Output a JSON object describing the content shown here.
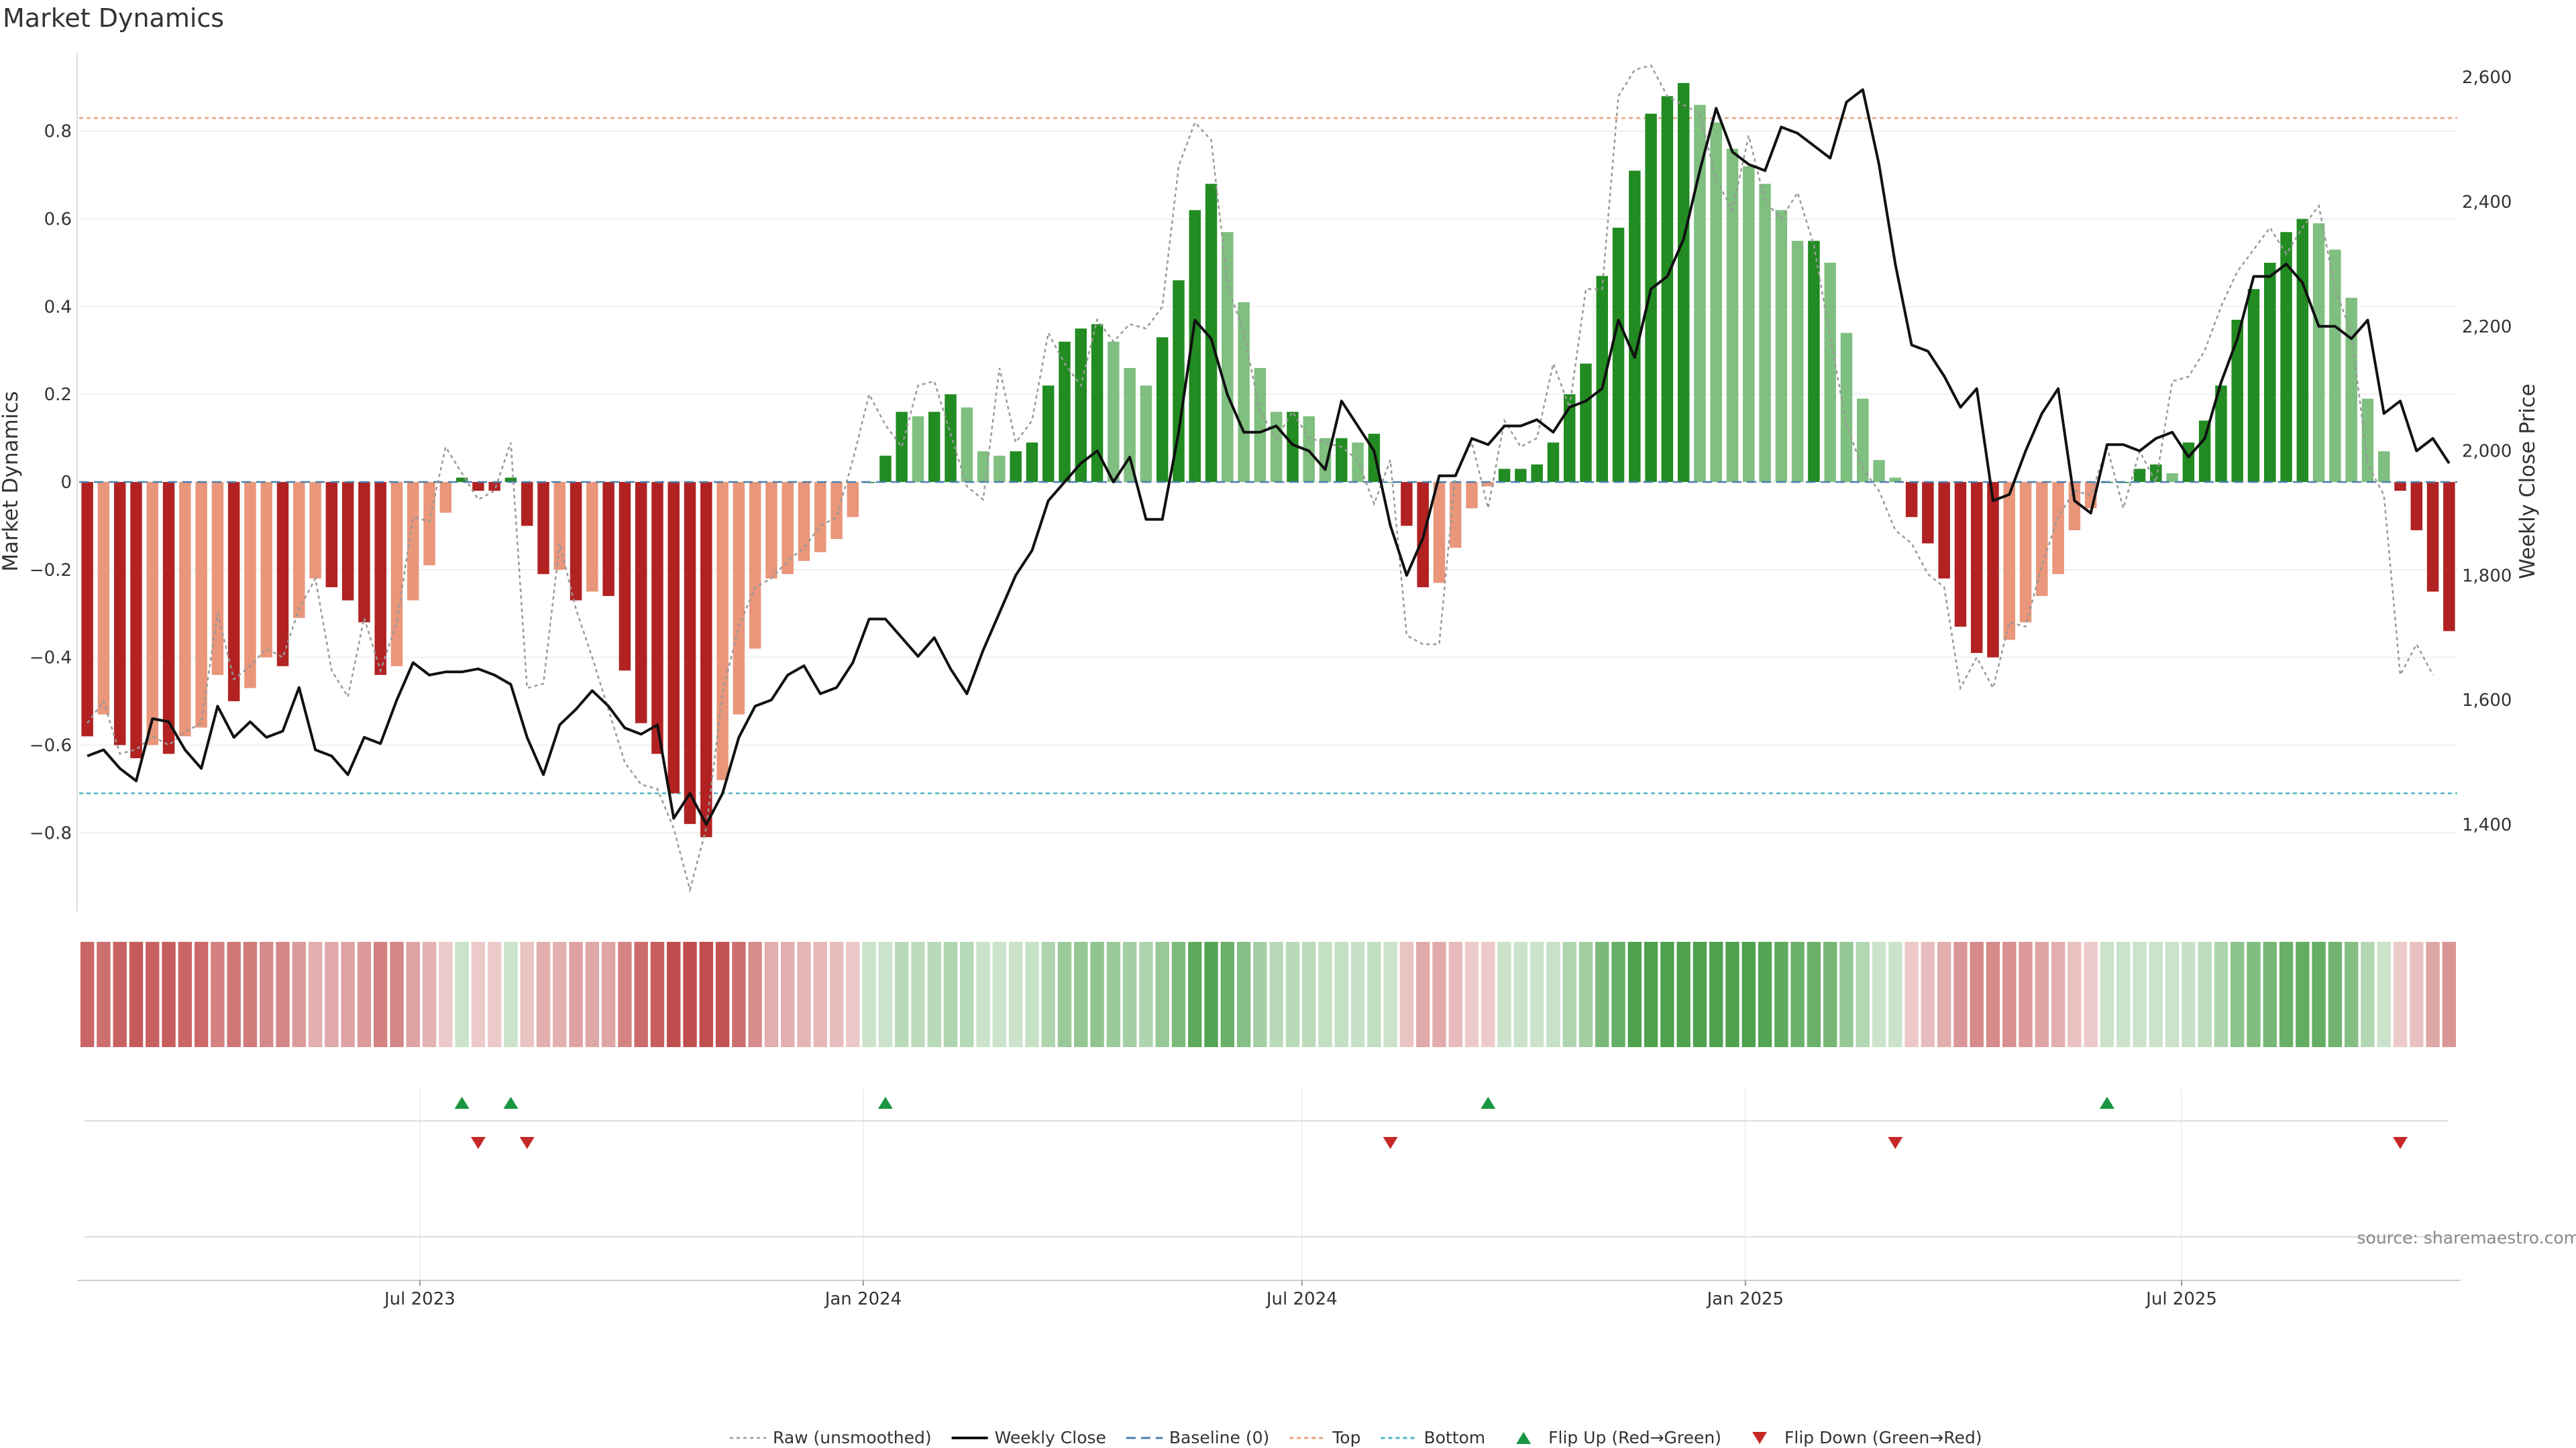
{
  "chart_data": {
    "type": "bar",
    "title": "Market Dynamics",
    "ylabel_left": "Market Dynamics",
    "ylabel_right": "Weekly Close Price",
    "ylim_left": [
      -0.98,
      0.98
    ],
    "ylim_right": [
      1260,
      2640
    ],
    "yticks_left": [
      -0.8,
      -0.6,
      -0.4,
      -0.2,
      0,
      0.2,
      0.4,
      0.6,
      0.8
    ],
    "yticks_left_labels": [
      "−0.8",
      "−0.6",
      "−0.4",
      "−0.2",
      "0",
      "0.2",
      "0.4",
      "0.6",
      "0.8"
    ],
    "yticks_right": [
      1400,
      1600,
      1800,
      2000,
      2200,
      2400,
      2600
    ],
    "yticks_right_labels": [
      "1,400",
      "1,600",
      "1,800",
      "2,000",
      "2,200",
      "2,400",
      "2,600"
    ],
    "date_range": [
      "2023-02-13",
      "2025-10-20"
    ],
    "x_ticks": [
      {
        "date": "2023-07-01",
        "label": "Jul 2023"
      },
      {
        "date": "2024-01-01",
        "label": "Jan 2024"
      },
      {
        "date": "2024-07-01",
        "label": "Jul 2024"
      },
      {
        "date": "2025-01-01",
        "label": "Jan 2025"
      },
      {
        "date": "2025-07-01",
        "label": "Jul 2025"
      }
    ],
    "series_dynamics_smoothed": [
      -0.58,
      -0.53,
      -0.6,
      -0.63,
      -0.6,
      -0.62,
      -0.58,
      -0.56,
      -0.44,
      -0.5,
      -0.47,
      -0.4,
      -0.42,
      -0.31,
      -0.22,
      -0.24,
      -0.27,
      -0.32,
      -0.44,
      -0.42,
      -0.27,
      -0.19,
      -0.07,
      0.01,
      -0.02,
      -0.02,
      0.01,
      -0.1,
      -0.21,
      -0.2,
      -0.27,
      -0.25,
      -0.26,
      -0.43,
      -0.55,
      -0.62,
      -0.71,
      -0.78,
      -0.81,
      -0.68,
      -0.53,
      -0.38,
      -0.22,
      -0.21,
      -0.18,
      -0.16,
      -0.13,
      -0.08,
      0.0,
      0.06,
      0.16,
      0.15,
      0.16,
      0.2,
      0.17,
      0.07,
      0.06,
      0.07,
      0.09,
      0.22,
      0.32,
      0.35,
      0.36,
      0.32,
      0.26,
      0.22,
      0.33,
      0.46,
      0.62,
      0.68,
      0.57,
      0.41,
      0.26,
      0.16,
      0.16,
      0.15,
      0.1,
      0.1,
      0.09,
      0.11,
      0.0,
      -0.1,
      -0.24,
      -0.23,
      -0.15,
      -0.06,
      -0.01,
      0.03,
      0.03,
      0.04,
      0.09,
      0.2,
      0.27,
      0.47,
      0.58,
      0.71,
      0.84,
      0.88,
      0.91,
      0.86,
      0.82,
      0.76,
      0.72,
      0.68,
      0.62,
      0.55,
      0.55,
      0.5,
      0.34,
      0.19,
      0.05,
      0.01,
      -0.08,
      -0.14,
      -0.22,
      -0.33,
      -0.39,
      -0.4,
      -0.36,
      -0.32,
      -0.26,
      -0.21,
      -0.11,
      -0.06,
      0.0,
      0.0,
      0.03,
      0.04,
      0.02,
      0.09,
      0.14,
      0.22,
      0.37,
      0.44,
      0.5,
      0.57,
      0.6,
      0.59,
      0.53,
      0.42,
      0.19,
      0.07,
      -0.02,
      -0.11,
      -0.25,
      -0.34
    ],
    "series_dynamics_raw": [
      -0.55,
      -0.5,
      -0.62,
      -0.61,
      -0.58,
      -0.6,
      -0.57,
      -0.55,
      -0.3,
      -0.45,
      -0.42,
      -0.38,
      -0.4,
      -0.29,
      -0.22,
      -0.43,
      -0.49,
      -0.31,
      -0.43,
      -0.32,
      -0.08,
      -0.09,
      0.08,
      0.02,
      -0.04,
      -0.02,
      0.09,
      -0.47,
      -0.46,
      -0.14,
      -0.29,
      -0.4,
      -0.52,
      -0.64,
      -0.69,
      -0.7,
      -0.79,
      -0.93,
      -0.79,
      -0.48,
      -0.33,
      -0.24,
      -0.22,
      -0.18,
      -0.15,
      -0.1,
      -0.08,
      0.05,
      0.2,
      0.13,
      0.08,
      0.22,
      0.23,
      0.11,
      -0.01,
      -0.04,
      0.26,
      0.09,
      0.14,
      0.34,
      0.27,
      0.22,
      0.37,
      0.32,
      0.36,
      0.35,
      0.4,
      0.72,
      0.82,
      0.78,
      0.45,
      0.34,
      0.16,
      0.1,
      0.16,
      0.1,
      0.09,
      0.08,
      0.05,
      -0.05,
      0.05,
      -0.35,
      -0.37,
      -0.37,
      0.02,
      0.09,
      -0.06,
      0.14,
      0.08,
      0.1,
      0.27,
      0.17,
      0.44,
      0.44,
      0.88,
      0.94,
      0.95,
      0.88,
      0.86,
      0.84,
      0.69,
      0.62,
      0.79,
      0.64,
      0.6,
      0.66,
      0.54,
      0.33,
      0.13,
      0.03,
      -0.02,
      -0.11,
      -0.14,
      -0.21,
      -0.24,
      -0.47,
      -0.4,
      -0.47,
      -0.32,
      -0.33,
      -0.19,
      -0.08,
      -0.02,
      -0.03,
      0.08,
      -0.06,
      0.07,
      0.0,
      0.23,
      0.24,
      0.3,
      0.4,
      0.48,
      0.53,
      0.58,
      0.52,
      0.58,
      0.63,
      0.44,
      0.34,
      0.04,
      -0.03,
      -0.44,
      -0.37,
      -0.44
    ],
    "series_weekly_close": [
      1510,
      1520,
      1490,
      1470,
      1570,
      1565,
      1520,
      1490,
      1590,
      1540,
      1565,
      1540,
      1550,
      1620,
      1520,
      1510,
      1480,
      1540,
      1530,
      1600,
      1660,
      1640,
      1645,
      1645,
      1650,
      1640,
      1625,
      1540,
      1480,
      1560,
      1585,
      1615,
      1590,
      1555,
      1545,
      1560,
      1410,
      1450,
      1400,
      1450,
      1540,
      1590,
      1600,
      1640,
      1655,
      1610,
      1620,
      1660,
      1730,
      1730,
      1700,
      1670,
      1700,
      1650,
      1610,
      1680,
      1740,
      1800,
      1840,
      1920,
      1950,
      1980,
      2000,
      1950,
      1990,
      1890,
      1890,
      2030,
      2210,
      2180,
      2090,
      2030,
      2030,
      2040,
      2010,
      2000,
      1970,
      2080,
      2040,
      2000,
      1880,
      1800,
      1860,
      1960,
      1960,
      2020,
      2010,
      2040,
      2040,
      2050,
      2030,
      2070,
      2080,
      2100,
      2210,
      2150,
      2260,
      2280,
      2340,
      2450,
      2550,
      2480,
      2460,
      2450,
      2520,
      2510,
      2490,
      2470,
      2560,
      2580,
      2460,
      2300,
      2170,
      2160,
      2120,
      2070,
      2100,
      1920,
      1930,
      2000,
      2060,
      2100,
      1920,
      1900,
      2010,
      2010,
      2000,
      2020,
      2030,
      1990,
      2020,
      2110,
      2180,
      2280,
      2280,
      2300,
      2270,
      2200,
      2200,
      2180,
      2210,
      2060,
      2080,
      2000,
      2020,
      1980
    ],
    "flip_up_indices": [
      23,
      26,
      49,
      86,
      124
    ],
    "flip_down_indices": [
      24,
      27,
      80,
      111,
      142
    ],
    "top_line": 0.83,
    "bottom_line": -0.71,
    "baseline": 0,
    "colors": {
      "strong_green": "#228b22",
      "light_green": "#7fbf7f",
      "strong_red": "#b22222",
      "light_red": "#e9967a",
      "top_line": "#e9a27a",
      "bottom_line": "#4fb3c8",
      "baseline": "#4a7fb0",
      "flip_up": "#1a9641",
      "flip_down": "#c62828"
    },
    "legend": [
      {
        "key": "raw",
        "label": "Raw (unsmoothed)"
      },
      {
        "key": "weekly",
        "label": "Weekly Close"
      },
      {
        "key": "baseline",
        "label": "Baseline (0)"
      },
      {
        "key": "top",
        "label": "Top"
      },
      {
        "key": "bottom",
        "label": "Bottom"
      },
      {
        "key": "flipup",
        "label": "Flip Up (Red→Green)"
      },
      {
        "key": "flipdown",
        "label": "Flip Down (Green→Red)"
      }
    ],
    "legend_placement": "bottom-center",
    "grid": true
  },
  "source": "source: sharemaestro.com"
}
